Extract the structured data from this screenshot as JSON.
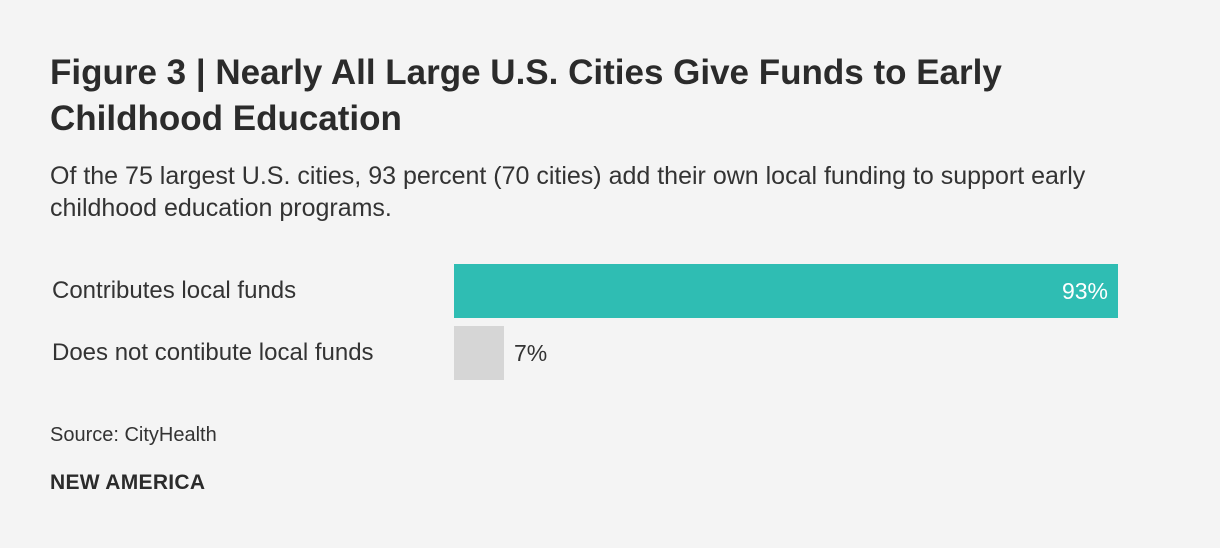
{
  "title": "Figure 3 | Nearly All Large U.S. Cities Give Funds to Early Childhood Education",
  "subtitle": "Of the 75 largest U.S. cities, 93 percent (70 cities) add their own local funding to support early childhood education programs.",
  "source": "Source: CityHealth",
  "brand": "NEW AMERICA",
  "chart_data": {
    "type": "bar",
    "orientation": "horizontal",
    "categories": [
      "Contributes local funds",
      "Does not contibute local funds"
    ],
    "values": [
      93,
      7
    ],
    "value_labels": [
      "93%",
      "7%"
    ],
    "colors": [
      "#2fbdb3",
      "#d6d6d6"
    ],
    "xlim": [
      0,
      100
    ],
    "grid": false
  }
}
